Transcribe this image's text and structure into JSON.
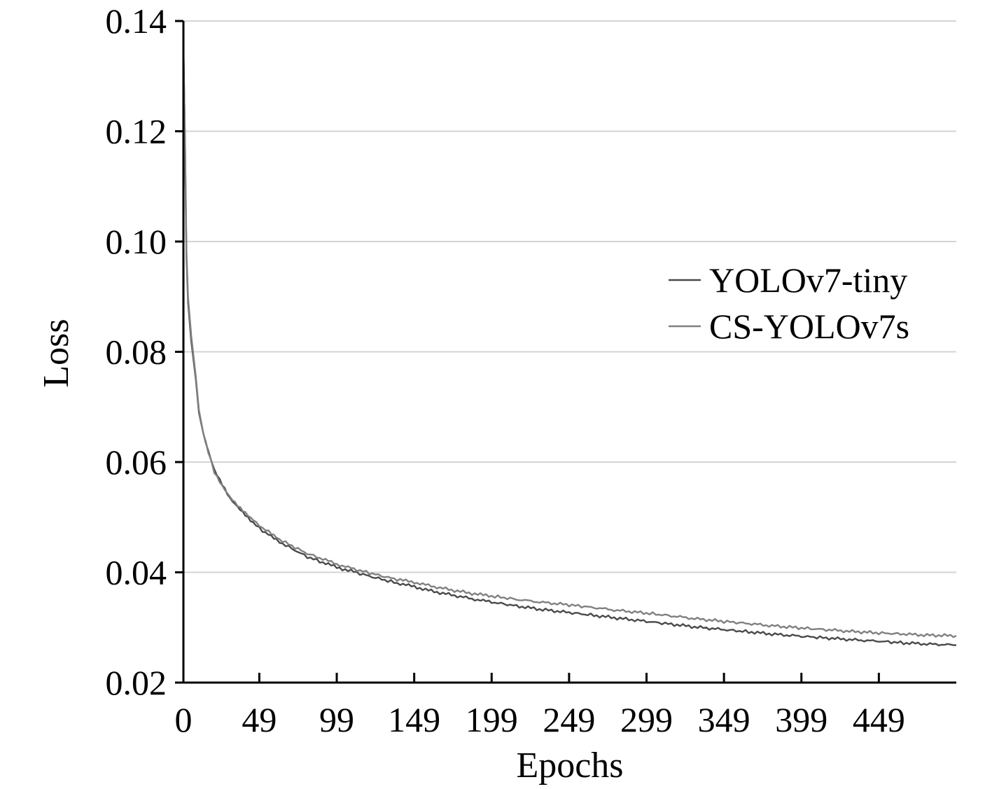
{
  "chart_data": {
    "type": "line",
    "title": "",
    "xlabel": "Epochs",
    "ylabel": "Loss",
    "xlim": [
      0,
      499
    ],
    "ylim": [
      0.02,
      0.14
    ],
    "x_ticks": [
      0,
      49,
      99,
      149,
      199,
      249,
      299,
      349,
      399,
      449
    ],
    "y_ticks": [
      0.02,
      0.04,
      0.06,
      0.08,
      0.1,
      0.12,
      0.14
    ],
    "y_tick_labels": [
      "0.02",
      "0.04",
      "0.06",
      "0.08",
      "0.10",
      "0.12",
      "0.14"
    ],
    "grid": "horizontal",
    "legend_position": "right",
    "series": [
      {
        "name": "YOLOv7-tiny",
        "color": "#4a4a4a",
        "x": [
          0,
          1,
          2,
          3,
          5,
          8,
          10,
          13,
          16,
          20,
          25,
          30,
          35,
          40,
          45,
          49,
          55,
          60,
          70,
          80,
          90,
          99,
          110,
          120,
          130,
          140,
          149,
          160,
          175,
          190,
          199,
          215,
          230,
          249,
          265,
          280,
          299,
          315,
          330,
          349,
          365,
          380,
          399,
          415,
          430,
          449,
          465,
          480,
          499
        ],
        "y": [
          0.136,
          0.118,
          0.097,
          0.089,
          0.082,
          0.075,
          0.069,
          0.065,
          0.062,
          0.0585,
          0.056,
          0.0535,
          0.052,
          0.0505,
          0.049,
          0.048,
          0.0468,
          0.0458,
          0.0443,
          0.0428,
          0.0418,
          0.0409,
          0.0401,
          0.0393,
          0.0386,
          0.0379,
          0.0374,
          0.0366,
          0.0358,
          0.035,
          0.0346,
          0.0339,
          0.0333,
          0.0327,
          0.0322,
          0.0317,
          0.0311,
          0.0306,
          0.0301,
          0.0296,
          0.0292,
          0.0288,
          0.0284,
          0.0281,
          0.0278,
          0.0275,
          0.0272,
          0.027,
          0.0268
        ]
      },
      {
        "name": "CS-YOLOv7s",
        "color": "#808080",
        "x": [
          0,
          1,
          2,
          3,
          5,
          8,
          10,
          13,
          16,
          20,
          25,
          30,
          35,
          40,
          45,
          49,
          55,
          60,
          70,
          80,
          90,
          99,
          110,
          120,
          130,
          140,
          149,
          160,
          175,
          190,
          199,
          215,
          230,
          249,
          265,
          280,
          299,
          315,
          330,
          349,
          365,
          380,
          399,
          415,
          430,
          449,
          465,
          480,
          499
        ],
        "y": [
          0.135,
          0.119,
          0.098,
          0.09,
          0.083,
          0.0755,
          0.0695,
          0.065,
          0.0618,
          0.0582,
          0.0558,
          0.0538,
          0.0522,
          0.0508,
          0.0494,
          0.0485,
          0.0473,
          0.0463,
          0.0448,
          0.0434,
          0.0424,
          0.0415,
          0.0406,
          0.0399,
          0.0392,
          0.0386,
          0.0382,
          0.0375,
          0.0367,
          0.036,
          0.0357,
          0.0351,
          0.0346,
          0.0341,
          0.0336,
          0.0331,
          0.0326,
          0.0321,
          0.0316,
          0.0311,
          0.0307,
          0.0303,
          0.0299,
          0.0296,
          0.0293,
          0.029,
          0.0288,
          0.0286,
          0.0285
        ]
      }
    ]
  }
}
